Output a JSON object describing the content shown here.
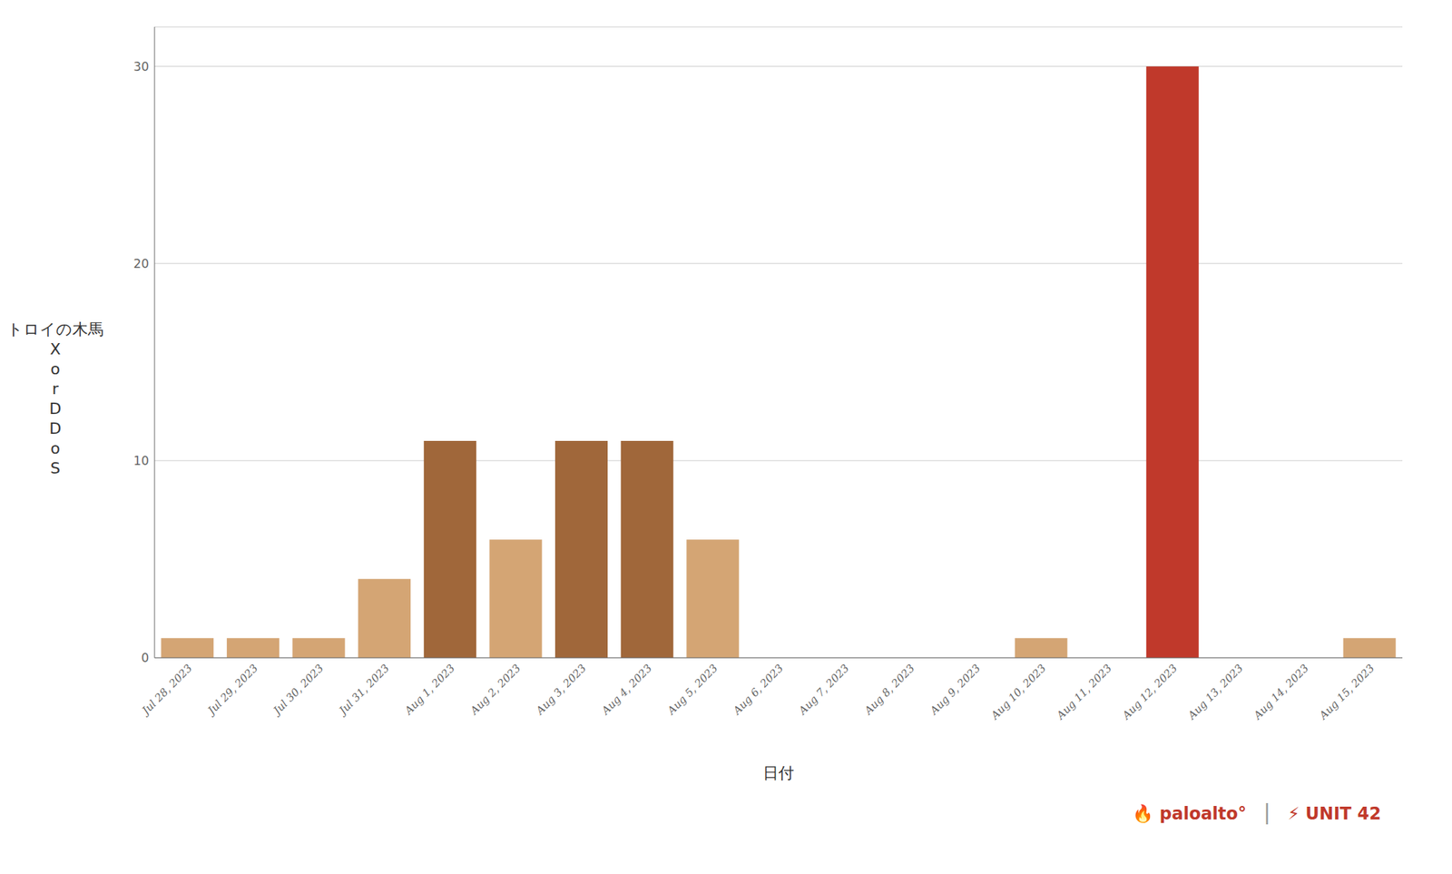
{
  "chart_data": {
    "type": "bar",
    "x_label": "日付",
    "y_label": "トロイの木馬 X o r D D o S",
    "categories": [
      "Jul 28, 2023",
      "Jul 29, 2023",
      "Jul 30, 2023",
      "Jul 31, 2023",
      "Aug 1, 2023",
      "Aug 2, 2023",
      "Aug 3, 2023",
      "Aug 4, 2023",
      "Aug 5, 2023",
      "Aug 6, 2023",
      "Aug 7, 2023",
      "Aug 8, 2023",
      "Aug 9, 2023",
      "Aug 10, 2023",
      "Aug 11, 2023",
      "Aug 12, 2023",
      "Aug 13, 2023",
      "Aug 14, 2023",
      "Aug 15, 2023"
    ],
    "values": [
      1,
      1,
      1,
      4,
      11,
      6,
      11,
      11,
      6,
      0,
      0,
      0,
      0,
      1,
      0,
      30,
      0,
      0,
      1
    ],
    "colors": [
      "#D4A574",
      "#D4A574",
      "#D4A574",
      "#D4A574",
      "#A0673A",
      "#D4A574",
      "#A0673A",
      "#A0673A",
      "#D4A574",
      "#8B4513",
      "#8B4513",
      "#8B4513",
      "#8B4513",
      "#D4A574",
      "#8B4513",
      "#C0392B",
      "#8B4513",
      "#8B4513",
      "#D4A574"
    ],
    "ylim": [
      0,
      32
    ],
    "yticks": [
      0,
      10,
      20,
      30
    ],
    "grid": true,
    "annotations": [
      {
        "text": "🔥 paloalto°",
        "color": "#C0392B"
      },
      {
        "text": "|",
        "color": "#999999"
      },
      {
        "text": "⚡ UNIT 42",
        "color": "#C0392B"
      }
    ]
  }
}
